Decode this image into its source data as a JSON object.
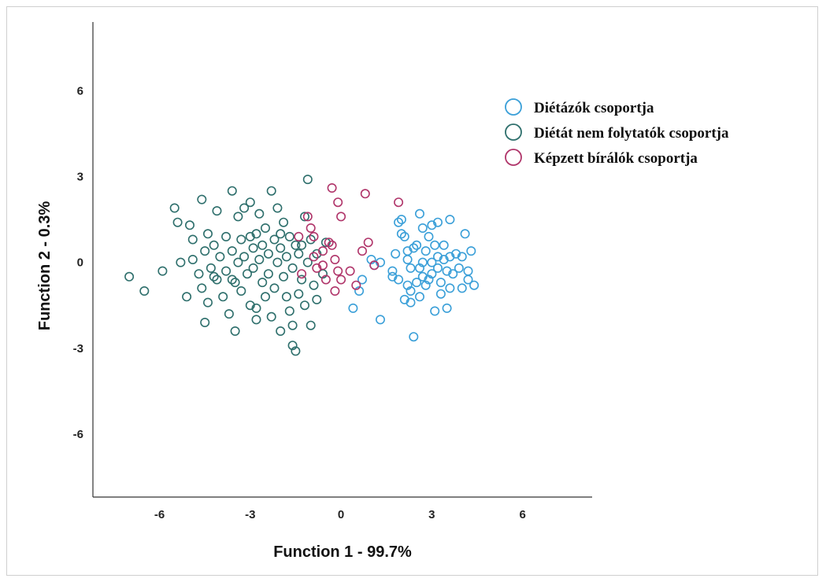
{
  "chart_data": {
    "type": "scatter",
    "xlabel": "Function 1 - 99.7%",
    "ylabel": "Function 2 - 0.3%",
    "xlim": [
      -8.2,
      8.3
    ],
    "ylim": [
      -8.2,
      8.4
    ],
    "xticks": [
      -6,
      -3,
      0,
      3,
      6
    ],
    "yticks": [
      -6,
      -3,
      0,
      3,
      6
    ],
    "legend_position": "top-right",
    "series": [
      {
        "name": "Diétázók csoportja",
        "color": "#3a9fd8",
        "points": [
          [
            0.4,
            -1.6
          ],
          [
            0.6,
            -1.0
          ],
          [
            0.7,
            -0.6
          ],
          [
            1.0,
            0.1
          ],
          [
            1.1,
            -0.1
          ],
          [
            1.3,
            -2.0
          ],
          [
            1.3,
            0.0
          ],
          [
            1.7,
            -0.3
          ],
          [
            1.7,
            -0.5
          ],
          [
            1.8,
            0.3
          ],
          [
            1.9,
            1.4
          ],
          [
            2.0,
            1.5
          ],
          [
            2.0,
            1.0
          ],
          [
            2.1,
            0.9
          ],
          [
            2.2,
            -0.8
          ],
          [
            2.2,
            0.4
          ],
          [
            2.2,
            0.1
          ],
          [
            2.3,
            -0.2
          ],
          [
            2.3,
            -1.0
          ],
          [
            2.3,
            -1.4
          ],
          [
            2.4,
            -2.6
          ],
          [
            2.4,
            0.5
          ],
          [
            2.5,
            -0.7
          ],
          [
            2.5,
            0.6
          ],
          [
            2.6,
            1.7
          ],
          [
            2.6,
            -1.2
          ],
          [
            2.7,
            1.2
          ],
          [
            2.7,
            0.0
          ],
          [
            2.7,
            -0.5
          ],
          [
            2.8,
            -0.8
          ],
          [
            2.8,
            0.4
          ],
          [
            2.9,
            -0.6
          ],
          [
            2.9,
            0.9
          ],
          [
            3.0,
            -0.4
          ],
          [
            3.0,
            0.0
          ],
          [
            3.0,
            1.3
          ],
          [
            3.1,
            -1.7
          ],
          [
            3.1,
            0.6
          ],
          [
            3.2,
            -0.2
          ],
          [
            3.2,
            0.2
          ],
          [
            3.2,
            1.4
          ],
          [
            3.3,
            -0.7
          ],
          [
            3.3,
            -1.1
          ],
          [
            3.4,
            0.1
          ],
          [
            3.4,
            0.6
          ],
          [
            3.5,
            -0.3
          ],
          [
            3.5,
            -1.6
          ],
          [
            3.6,
            1.5
          ],
          [
            3.6,
            0.2
          ],
          [
            3.7,
            -0.4
          ],
          [
            3.8,
            0.3
          ],
          [
            3.9,
            -0.2
          ],
          [
            4.0,
            0.2
          ],
          [
            4.0,
            -0.9
          ],
          [
            4.1,
            1.0
          ],
          [
            4.2,
            -0.3
          ],
          [
            4.2,
            -0.6
          ],
          [
            4.3,
            0.4
          ],
          [
            4.4,
            -0.8
          ],
          [
            1.9,
            -0.6
          ],
          [
            2.1,
            -1.3
          ],
          [
            2.6,
            -0.2
          ],
          [
            3.6,
            -0.9
          ]
        ]
      },
      {
        "name": "Diétát nem folytatók csoportja",
        "color": "#2e6f6c",
        "points": [
          [
            -7.0,
            -0.5
          ],
          [
            -6.5,
            -1.0
          ],
          [
            -5.9,
            -0.3
          ],
          [
            -5.5,
            1.9
          ],
          [
            -5.4,
            1.4
          ],
          [
            -5.3,
            0.0
          ],
          [
            -5.1,
            -1.2
          ],
          [
            -5.0,
            1.3
          ],
          [
            -4.9,
            0.8
          ],
          [
            -4.9,
            0.1
          ],
          [
            -4.7,
            -0.4
          ],
          [
            -4.6,
            2.2
          ],
          [
            -4.6,
            -0.9
          ],
          [
            -4.5,
            -2.1
          ],
          [
            -4.5,
            0.4
          ],
          [
            -4.4,
            1.0
          ],
          [
            -4.4,
            -1.4
          ],
          [
            -4.3,
            -0.2
          ],
          [
            -4.2,
            0.6
          ],
          [
            -4.1,
            1.8
          ],
          [
            -4.1,
            -0.6
          ],
          [
            -4.0,
            0.2
          ],
          [
            -3.9,
            -1.2
          ],
          [
            -3.8,
            0.9
          ],
          [
            -3.8,
            -0.3
          ],
          [
            -3.7,
            -1.8
          ],
          [
            -3.6,
            2.5
          ],
          [
            -3.6,
            0.4
          ],
          [
            -3.5,
            -2.4
          ],
          [
            -3.5,
            -0.7
          ],
          [
            -3.4,
            0.0
          ],
          [
            -3.4,
            1.6
          ],
          [
            -3.3,
            0.8
          ],
          [
            -3.3,
            -1.0
          ],
          [
            -3.2,
            1.9
          ],
          [
            -3.2,
            0.2
          ],
          [
            -3.1,
            -0.4
          ],
          [
            -3.0,
            2.1
          ],
          [
            -3.0,
            -1.5
          ],
          [
            -2.9,
            0.5
          ],
          [
            -2.9,
            -0.2
          ],
          [
            -2.8,
            1.0
          ],
          [
            -2.8,
            -2.0
          ],
          [
            -2.7,
            1.7
          ],
          [
            -2.7,
            0.1
          ],
          [
            -2.6,
            -0.7
          ],
          [
            -2.6,
            0.6
          ],
          [
            -2.5,
            -1.2
          ],
          [
            -2.5,
            1.2
          ],
          [
            -2.4,
            0.3
          ],
          [
            -2.4,
            -0.4
          ],
          [
            -2.3,
            2.5
          ],
          [
            -2.3,
            -1.9
          ],
          [
            -2.2,
            0.8
          ],
          [
            -2.2,
            -0.9
          ],
          [
            -2.1,
            1.9
          ],
          [
            -2.1,
            0.0
          ],
          [
            -2.0,
            -2.4
          ],
          [
            -2.0,
            0.5
          ],
          [
            -1.9,
            -0.5
          ],
          [
            -1.9,
            1.4
          ],
          [
            -1.8,
            -1.2
          ],
          [
            -1.8,
            0.2
          ],
          [
            -1.7,
            -1.7
          ],
          [
            -1.7,
            0.9
          ],
          [
            -1.6,
            -2.9
          ],
          [
            -1.6,
            -0.2
          ],
          [
            -1.5,
            -3.1
          ],
          [
            -1.5,
            0.6
          ],
          [
            -1.4,
            -1.1
          ],
          [
            -1.4,
            0.3
          ],
          [
            -1.3,
            -0.6
          ],
          [
            -1.2,
            1.6
          ],
          [
            -1.2,
            -1.5
          ],
          [
            -1.1,
            2.9
          ],
          [
            -1.1,
            0.0
          ],
          [
            -1.0,
            -2.2
          ],
          [
            -1.0,
            0.8
          ],
          [
            -0.9,
            -0.8
          ],
          [
            -0.8,
            -1.3
          ],
          [
            -0.8,
            0.3
          ],
          [
            -0.6,
            -0.4
          ],
          [
            -0.5,
            0.7
          ],
          [
            -1.6,
            -2.2
          ],
          [
            -2.8,
            -1.6
          ],
          [
            -3.6,
            -0.6
          ],
          [
            -4.2,
            -0.5
          ],
          [
            -2.0,
            1.0
          ],
          [
            -3.0,
            0.9
          ],
          [
            -1.3,
            0.6
          ]
        ]
      },
      {
        "name": "Képzett bírálók csoportja",
        "color": "#b0356a",
        "points": [
          [
            -1.4,
            0.9
          ],
          [
            -1.1,
            1.6
          ],
          [
            -1.0,
            1.2
          ],
          [
            -0.9,
            0.9
          ],
          [
            -0.9,
            0.2
          ],
          [
            -0.8,
            -0.2
          ],
          [
            -0.6,
            -0.1
          ],
          [
            -0.5,
            -0.6
          ],
          [
            -0.4,
            0.7
          ],
          [
            -0.3,
            2.6
          ],
          [
            -0.3,
            0.6
          ],
          [
            -0.2,
            0.1
          ],
          [
            -0.1,
            2.1
          ],
          [
            -0.1,
            -0.3
          ],
          [
            0.0,
            1.6
          ],
          [
            0.0,
            -0.6
          ],
          [
            -0.2,
            -1.0
          ],
          [
            0.3,
            -0.3
          ],
          [
            0.5,
            -0.8
          ],
          [
            0.7,
            0.4
          ],
          [
            0.8,
            2.4
          ],
          [
            0.9,
            0.7
          ],
          [
            1.1,
            -0.1
          ],
          [
            1.9,
            2.1
          ],
          [
            -1.3,
            -0.4
          ],
          [
            -0.6,
            0.4
          ]
        ]
      }
    ]
  }
}
